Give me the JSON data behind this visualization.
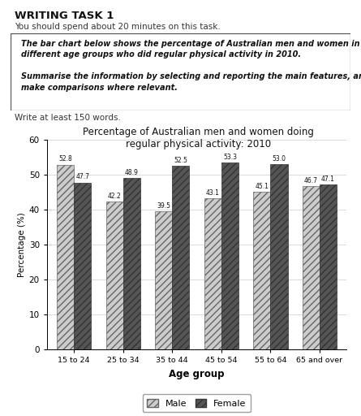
{
  "title": "Percentage of Australian men and women doing\nregular physical activity: 2010",
  "xlabel": "Age group",
  "ylabel": "Percentage (%)",
  "categories": [
    "15 to 24",
    "25 to 34",
    "35 to 44",
    "45 to 54",
    "55 to 64",
    "65 and over"
  ],
  "male_values": [
    52.8,
    42.2,
    39.5,
    43.1,
    45.1,
    46.7
  ],
  "female_values": [
    47.7,
    48.9,
    52.5,
    53.3,
    53.0,
    47.1
  ],
  "ylim": [
    0,
    60
  ],
  "yticks": [
    0,
    10,
    20,
    30,
    40,
    50,
    60
  ],
  "bar_width": 0.35,
  "header_title": "WRITING TASK 1",
  "header_subtitle": "You should spend about 20 minutes on this task.",
  "box_line1": "The bar chart below shows the percentage of Australian men and women in",
  "box_line2": "different age groups who did regular physical activity in 2010.",
  "box_line3": "",
  "box_line4": "Summarise the information by selecting and reporting the main features, and",
  "box_line5": "make comparisons where relevant.",
  "footer": "Write at least 150 words.",
  "bg_color": "#ffffff"
}
